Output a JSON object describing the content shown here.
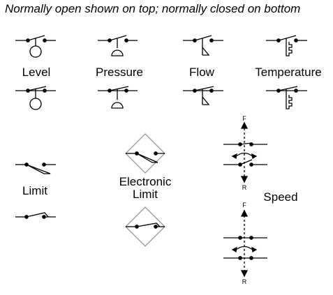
{
  "caption": "Normally open shown on top; normally closed on bottom",
  "labels": {
    "level": "Level",
    "pressure": "Pressure",
    "flow": "Flow",
    "temperature": "Temperature",
    "limit": "Limit",
    "electronic_limit_line1": "Electronic",
    "electronic_limit_line2": "Limit",
    "speed": "Speed"
  },
  "speed_marks": {
    "forward": "F",
    "reverse": "R"
  }
}
